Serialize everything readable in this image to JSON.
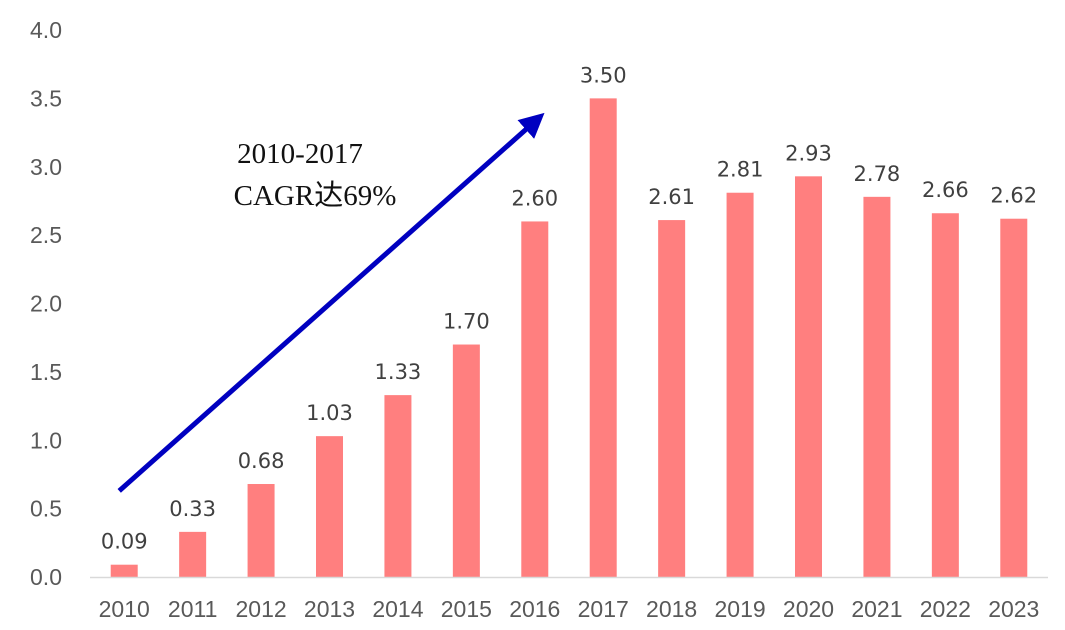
{
  "chart_data": {
    "type": "bar",
    "categories": [
      "2010",
      "2011",
      "2012",
      "2013",
      "2014",
      "2015",
      "2016",
      "2017",
      "2018",
      "2019",
      "2020",
      "2021",
      "2022",
      "2023"
    ],
    "values": [
      0.09,
      0.33,
      0.68,
      1.03,
      1.33,
      1.7,
      2.6,
      3.5,
      2.61,
      2.81,
      2.93,
      2.78,
      2.66,
      2.62
    ],
    "data_labels": [
      "0.09",
      "0.33",
      "0.68",
      "1.03",
      "1.33",
      "1.70",
      "2.60",
      "3.50",
      "2.61",
      "2.81",
      "2.93",
      "2.78",
      "2.66",
      "2.62"
    ],
    "ylim": [
      0,
      4.0
    ],
    "yticks": [
      "0.0",
      "0.5",
      "1.0",
      "1.5",
      "2.0",
      "2.5",
      "3.0",
      "3.5",
      "4.0"
    ],
    "title": "",
    "xlabel": "",
    "ylabel": "",
    "grid": false,
    "legend": "none",
    "bar_color": "#ff7f7f",
    "annotation": {
      "line1": "2010-2017",
      "line2": "CAGR达69%",
      "arrow_color": "#0000c0",
      "arrow_from": [
        "2010",
        0.63
      ],
      "arrow_to": [
        "2016",
        3.35
      ]
    }
  }
}
